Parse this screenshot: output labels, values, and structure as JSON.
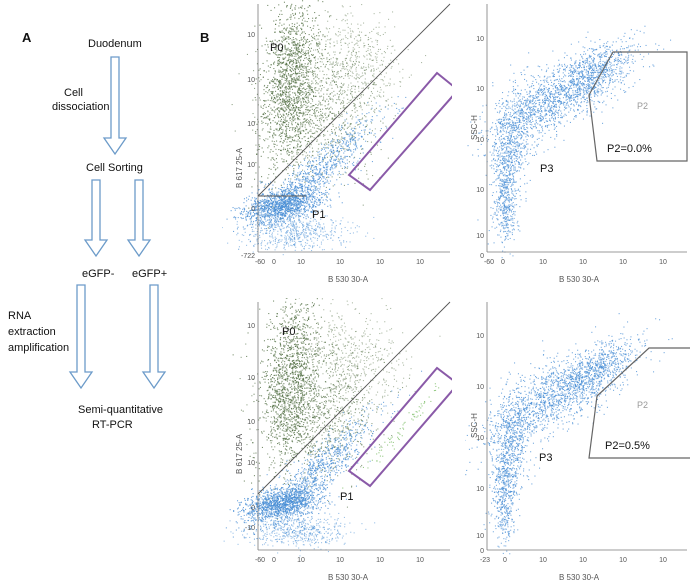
{
  "panels": {
    "a_label": "A",
    "b_label": "B"
  },
  "flow": {
    "duodenum": "Duodenum",
    "cell_dissociation_1": "Cell",
    "cell_dissociation_2": "dissociation",
    "cell_sorting": "Cell Sorting",
    "egfp_neg": "eGFP-",
    "egfp_pos": "eGFP+",
    "rna_1": "RNA",
    "rna_2": "extraction",
    "rna_3": "amplification",
    "result_1": "Semi-quantitative",
    "result_2": "RT-PCR"
  },
  "plots": {
    "left_ylabel": "B 617 25-A",
    "left_xlabel": "B 530 30-A",
    "right_ylabel": "SSC-H",
    "right_xlabel": "B 530 30-A",
    "gate_p0": "P0",
    "gate_p1": "P1",
    "gate_p2": "P2",
    "gate_p3": "P3",
    "top_p2_stat": "P2=0.0%",
    "bottom_p2_stat": "P2=0.5%",
    "left_xticks": [
      "-60",
      "0",
      "10",
      "10",
      "10",
      "10",
      "10"
    ],
    "left_yticks_top": [
      "-722",
      "0",
      "10",
      "10",
      "10",
      "10"
    ],
    "left_yticks_bottom": [
      "-10",
      "0",
      "10",
      "10",
      "10",
      "10"
    ],
    "right_xticks_top": [
      "-60",
      "0",
      "10",
      "10",
      "10",
      "10",
      "10"
    ],
    "right_xticks_bottom": [
      "-23",
      "0",
      "10",
      "10",
      "10",
      "10",
      "10"
    ],
    "right_yticks": [
      "0",
      "10",
      "10",
      "10",
      "10",
      "10"
    ]
  },
  "colors": {
    "green_dots": "#4d6b3f",
    "blue_dots": "#4a8fd6",
    "gate_purple": "#8a5aa8",
    "arrow_blue": "#6c9bc9"
  }
}
